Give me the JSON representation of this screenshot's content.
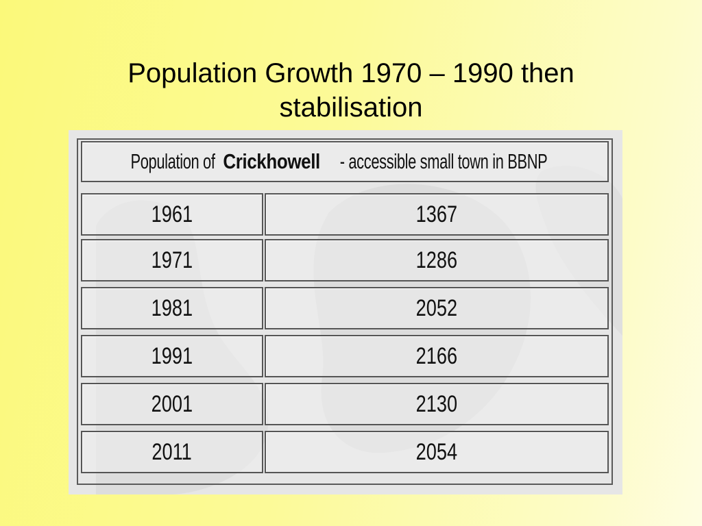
{
  "slide": {
    "title": "Population Growth 1970 – 1990 then stabilisation"
  },
  "table": {
    "caption_prefix": "Population of ",
    "caption_town": "Crickhowell",
    "caption_suffix": " - accessible small town in BBNP",
    "rows": [
      {
        "year": "1961",
        "population": "1367"
      },
      {
        "year": "1971",
        "population": "1286"
      },
      {
        "year": "1981",
        "population": "2052"
      },
      {
        "year": "1991",
        "population": "2166"
      },
      {
        "year": "2001",
        "population": "2130"
      },
      {
        "year": "2011",
        "population": "2054"
      }
    ]
  },
  "colors": {
    "background_start": "#fbf97a",
    "background_end": "#fefde2",
    "table_bg": "#e6e6e6",
    "border": "#555555"
  }
}
